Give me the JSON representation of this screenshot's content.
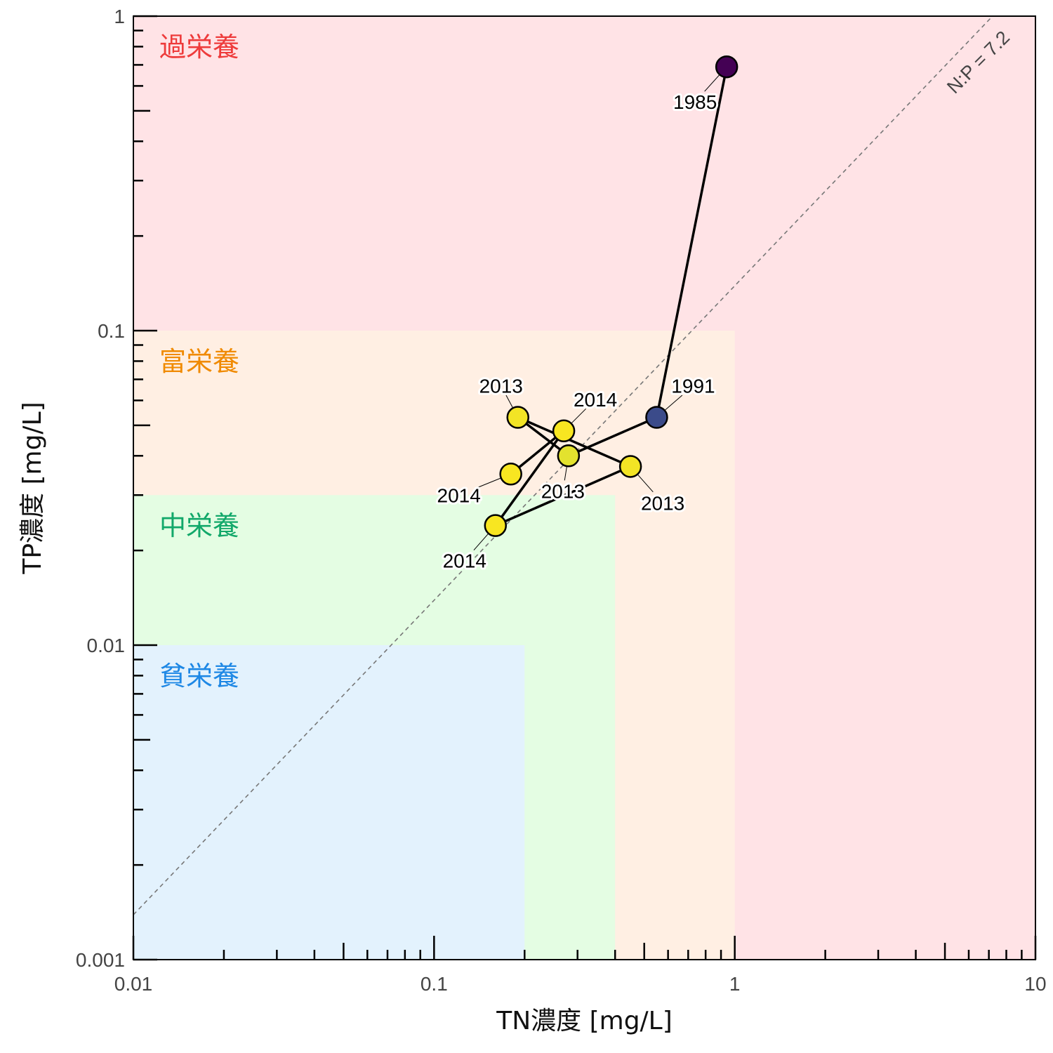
{
  "chart_data": {
    "type": "scatter",
    "title": "",
    "xlabel": "TN濃度 [mg/L]",
    "ylabel": "TP濃度 [mg/L]",
    "xscale": "log",
    "yscale": "log",
    "xlim": [
      0.01,
      10
    ],
    "ylim": [
      0.001,
      1
    ],
    "x_ticks": [
      "0.01",
      "0.1",
      "1",
      "10"
    ],
    "y_ticks": [
      "0.001",
      "0.01",
      "0.1",
      "1"
    ],
    "grid": false,
    "legend": "none",
    "zones": [
      {
        "label": "過栄養",
        "tn_max": 10,
        "tp_max": 1,
        "fill": "#ffe3e6",
        "text_color": "#ee3b3b"
      },
      {
        "label": "富栄養",
        "tn_max": 1,
        "tp_max": 0.1,
        "fill": "#ffefe3",
        "text_color": "#f08a00"
      },
      {
        "label": "中栄養",
        "tn_max": 0.4,
        "tp_max": 0.03,
        "fill": "#e4fde3",
        "text_color": "#12a86a"
      },
      {
        "label": "貧栄養",
        "tn_max": 0.2,
        "tp_max": 0.01,
        "fill": "#e3f2fd",
        "text_color": "#1e88e5"
      }
    ],
    "reference_line": {
      "label": "N:P = 7.2",
      "ratio": 7.2,
      "color": "#777777"
    },
    "series": [
      {
        "points": [
          {
            "x": 0.94,
            "y": 0.69,
            "label": "1985",
            "color": "#440154"
          },
          {
            "x": 0.55,
            "y": 0.053,
            "label": "1991",
            "color": "#3b4b8a"
          },
          {
            "x": 0.28,
            "y": 0.04,
            "label": "2013",
            "color": "#e3e22e"
          },
          {
            "x": 0.19,
            "y": 0.053,
            "label": "2013",
            "color": "#f2e425"
          },
          {
            "x": 0.45,
            "y": 0.037,
            "label": "2013",
            "color": "#f3e425"
          },
          {
            "x": 0.16,
            "y": 0.024,
            "label": "2014",
            "color": "#f8e621"
          },
          {
            "x": 0.27,
            "y": 0.048,
            "label": "2014",
            "color": "#f8e621"
          },
          {
            "x": 0.18,
            "y": 0.035,
            "label": "2014",
            "color": "#f8e621"
          }
        ],
        "line_color": "#000000"
      }
    ]
  }
}
